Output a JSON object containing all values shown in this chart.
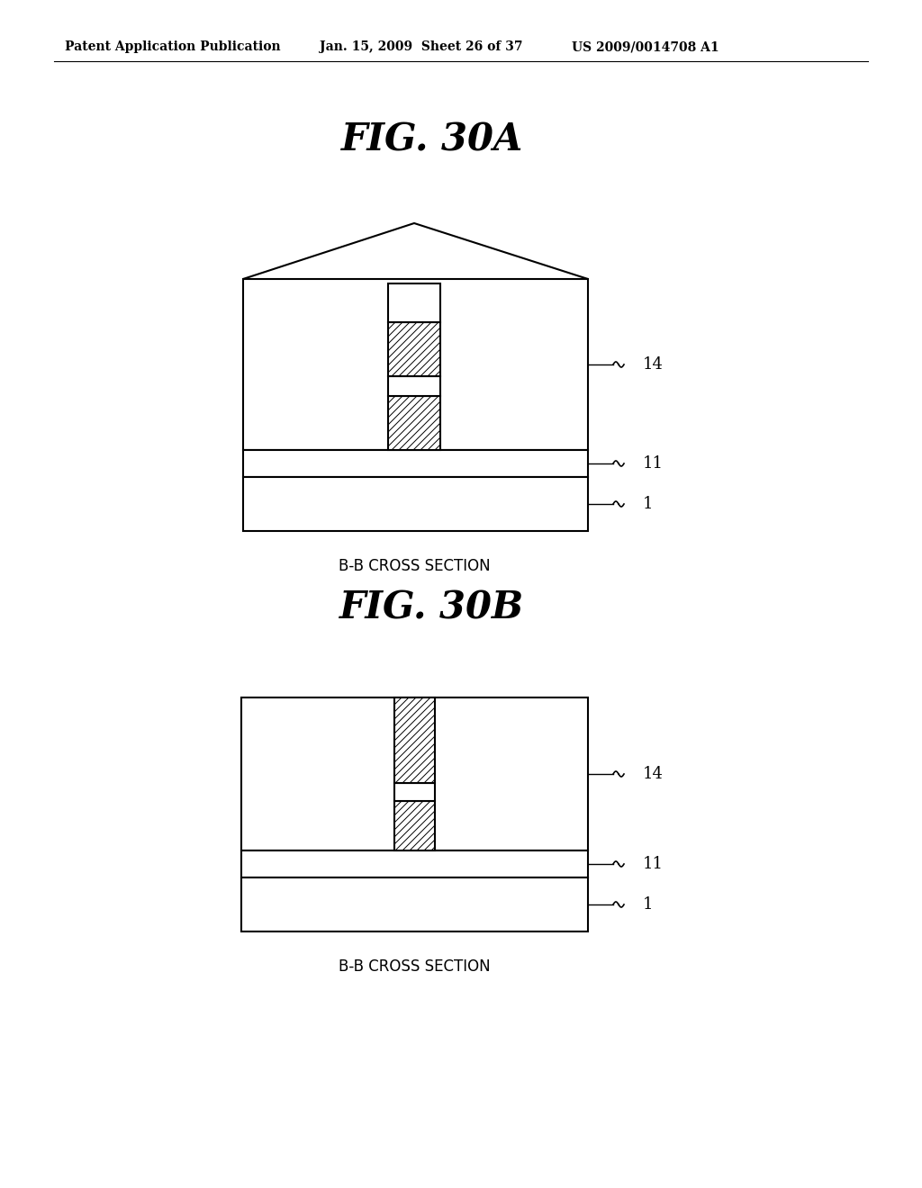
{
  "bg_color": "#ffffff",
  "header_text": "Patent Application Publication",
  "header_date": "Jan. 15, 2009  Sheet 26 of 37",
  "header_patent": "US 2009/0014708 A1",
  "fig_a_title": "FIG. 30A",
  "fig_b_title": "FIG. 30B",
  "caption": "B-B CROSS SECTION",
  "label_14": "14",
  "label_11": "11",
  "label_1": "1"
}
